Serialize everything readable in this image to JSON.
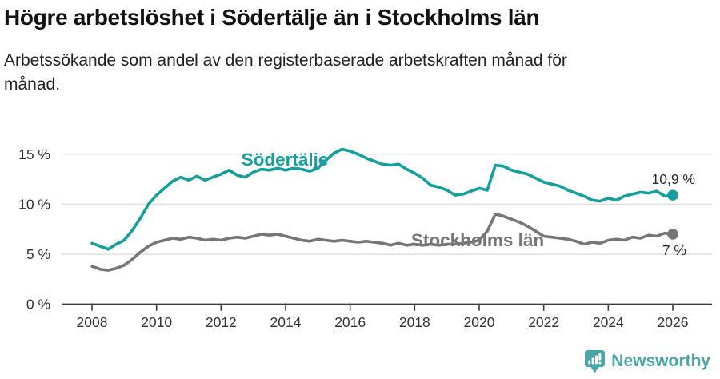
{
  "title": "Högre arbetslöshet i Södertälje än i Stockholms län",
  "subtitle": {
    "lines": [
      "Arbetssökande som andel av den registerbaserade arbetskraften månad för",
      "månad."
    ]
  },
  "footer": {
    "brand": "Newsworthy"
  },
  "colors": {
    "sodertalje": "#129f9d",
    "stockholms_lan": "#767676",
    "grid": "#dddddd",
    "axis": "#3c3c3c",
    "tick_text": "#333333",
    "end_label_text": "#2b2b2b",
    "logo": "#4ba5a6"
  },
  "chart_data": {
    "type": "line",
    "title": "Högre arbetslöshet i Södertälje än i Stockholms län",
    "subtitle": "Arbetssökande som andel av den registerbaserade arbetskraften månad för månad.",
    "unit": "%",
    "grid": "horizontal",
    "legend_position": "inline-labels",
    "x_start": 2008,
    "x_step": 0.25,
    "x_axis": {
      "ticks": [
        2008,
        2010,
        2012,
        2014,
        2016,
        2018,
        2020,
        2022,
        2024,
        2026
      ],
      "tick_labels": [
        "2008",
        "2010",
        "2012",
        "2014",
        "2016",
        "2018",
        "2020",
        "2022",
        "2024",
        "2026"
      ],
      "range": [
        2007.1,
        2027.2
      ]
    },
    "y_axis": {
      "ticks": [
        0,
        5,
        10,
        15
      ],
      "tick_labels": [
        "0 %",
        "5 %",
        "10 %",
        "15 %"
      ],
      "range": [
        0,
        15.8
      ]
    },
    "series": [
      {
        "name": "Södertälje",
        "color": "#129f9d",
        "end_label": "10,9 %",
        "end_value": 10.9,
        "values": [
          6.1,
          5.8,
          5.5,
          6.0,
          6.4,
          7.4,
          8.6,
          10.0,
          10.9,
          11.6,
          12.3,
          12.7,
          12.4,
          12.8,
          12.4,
          12.7,
          13.0,
          13.4,
          12.9,
          12.7,
          13.2,
          13.5,
          13.4,
          13.6,
          13.4,
          13.6,
          13.5,
          13.3,
          13.6,
          14.4,
          15.1,
          15.5,
          15.3,
          15.0,
          14.6,
          14.3,
          14.0,
          13.9,
          14.0,
          13.5,
          13.1,
          12.6,
          11.9,
          11.7,
          11.4,
          10.9,
          11.0,
          11.3,
          11.6,
          11.4,
          13.9,
          13.8,
          13.4,
          13.2,
          13.0,
          12.6,
          12.2,
          12.0,
          11.8,
          11.4,
          11.1,
          10.8,
          10.4,
          10.3,
          10.6,
          10.4,
          10.8,
          11.0,
          11.2,
          11.1,
          11.3,
          10.8,
          10.9
        ]
      },
      {
        "name": "Stockholms län",
        "color": "#767676",
        "end_label": "7 %",
        "end_value": 7.0,
        "values": [
          3.8,
          3.5,
          3.4,
          3.6,
          3.9,
          4.5,
          5.2,
          5.8,
          6.2,
          6.4,
          6.6,
          6.5,
          6.7,
          6.6,
          6.4,
          6.5,
          6.4,
          6.6,
          6.7,
          6.6,
          6.8,
          7.0,
          6.9,
          7.0,
          6.8,
          6.6,
          6.4,
          6.3,
          6.5,
          6.4,
          6.3,
          6.4,
          6.3,
          6.2,
          6.3,
          6.2,
          6.1,
          5.9,
          6.1,
          5.9,
          6.0,
          5.9,
          6.0,
          5.9,
          6.0,
          6.0,
          6.1,
          6.2,
          6.4,
          7.3,
          9.0,
          8.8,
          8.5,
          8.2,
          7.8,
          7.3,
          6.8,
          6.7,
          6.6,
          6.5,
          6.3,
          6.0,
          6.2,
          6.1,
          6.4,
          6.5,
          6.4,
          6.7,
          6.6,
          6.9,
          6.8,
          7.1,
          7.0
        ]
      }
    ]
  }
}
